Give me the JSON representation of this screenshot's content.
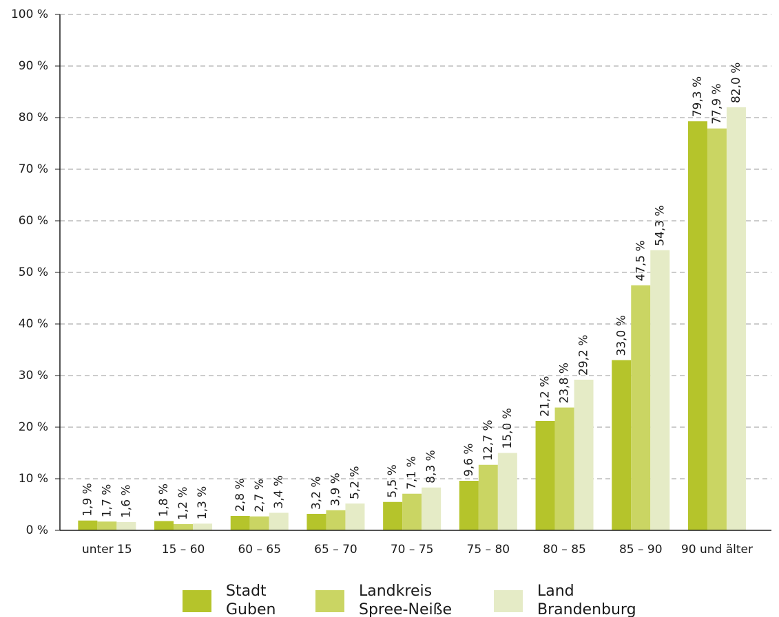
{
  "chart_data": {
    "type": "bar",
    "categories": [
      "unter 15",
      "15 – 60",
      "60 – 65",
      "65 – 70",
      "70 – 75",
      "75 – 80",
      "80 – 85",
      "85 – 90",
      "90 und älter"
    ],
    "series": [
      {
        "name": "Stadt Guben",
        "color": "#b5c42b",
        "values": [
          1.9,
          1.8,
          2.8,
          3.2,
          5.5,
          9.6,
          21.2,
          33.0,
          79.3
        ],
        "value_labels": [
          "1,9 %",
          "1,8 %",
          "2,8 %",
          "3,2 %",
          "5,5 %",
          "9,6 %",
          "21,2 %",
          "33,0 %",
          "79,3 %"
        ]
      },
      {
        "name": "Landkreis Spree-Neiße",
        "color": "#cad563",
        "values": [
          1.7,
          1.2,
          2.7,
          3.9,
          7.1,
          12.7,
          23.8,
          47.5,
          77.9
        ],
        "value_labels": [
          "1,7 %",
          "1,2 %",
          "2,7 %",
          "3,9 %",
          "7,1 %",
          "12,7 %",
          "23,8 %",
          "47,5 %",
          "77,9 %"
        ]
      },
      {
        "name": "Land Brandenburg",
        "color": "#e5ebc6",
        "values": [
          1.6,
          1.3,
          3.4,
          5.2,
          8.3,
          15.0,
          29.2,
          54.3,
          82.0
        ],
        "value_labels": [
          "1,6 %",
          "1,3 %",
          "3,4 %",
          "5,2 %",
          "8,3 %",
          "15,0 %",
          "29,2 %",
          "54,3 %",
          "82,0 %"
        ]
      }
    ],
    "ylim": [
      0,
      100
    ],
    "yticks": [
      {
        "value": 0,
        "label": "0 %"
      },
      {
        "value": 10,
        "label": "10 %"
      },
      {
        "value": 20,
        "label": "20 %"
      },
      {
        "value": 30,
        "label": "30 %"
      },
      {
        "value": 40,
        "label": "40 %"
      },
      {
        "value": 50,
        "label": "50 %"
      },
      {
        "value": 60,
        "label": "60 %"
      },
      {
        "value": 70,
        "label": "70 %"
      },
      {
        "value": 80,
        "label": "80 %"
      },
      {
        "value": 90,
        "label": "90 %"
      },
      {
        "value": 100,
        "label": "100 %"
      }
    ],
    "grid": true,
    "legend": "bottom"
  }
}
